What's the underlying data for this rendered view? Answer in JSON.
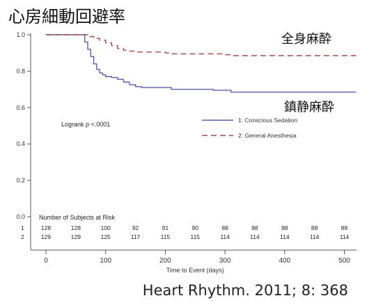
{
  "page": {
    "title": "心房細動回避率",
    "citation": "Heart Rhythm. 2011; 8: 368"
  },
  "chart_data": {
    "type": "line",
    "xlabel": "Time to Event (days)",
    "ylabel": "",
    "xlim": [
      -20,
      520
    ],
    "ylim": [
      0.0,
      1.0
    ],
    "x_ticks": [
      0,
      100,
      200,
      300,
      400,
      500
    ],
    "y_ticks": [
      0.0,
      0.2,
      0.4,
      0.6,
      0.8,
      1.0
    ],
    "y_tick_labels": [
      "0.0",
      "0.2",
      "0.4",
      "0.6",
      "0.8",
      "1.0"
    ],
    "grid": false,
    "legend_position": "center-right",
    "colors": {
      "conscious": "#5b5fa8",
      "general": "#a04a4a"
    },
    "series": [
      {
        "name": "1: Conscious Sedation",
        "annotation": "鎮静麻酔",
        "color": "#5b5fa8",
        "dash": "solid",
        "x": [
          0,
          60,
          65,
          70,
          75,
          80,
          85,
          90,
          95,
          100,
          110,
          120,
          130,
          140,
          150,
          160,
          200,
          210,
          250,
          280,
          300,
          310,
          400,
          450,
          500,
          520
        ],
        "y": [
          1.0,
          1.0,
          0.96,
          0.92,
          0.88,
          0.84,
          0.81,
          0.79,
          0.78,
          0.77,
          0.765,
          0.755,
          0.74,
          0.725,
          0.715,
          0.71,
          0.71,
          0.7,
          0.7,
          0.695,
          0.695,
          0.685,
          0.685,
          0.685,
          0.685,
          0.685
        ]
      },
      {
        "name": "2: General Anesthesia",
        "annotation": "全身麻酔",
        "color": "#a04a4a",
        "dash": "dashed",
        "x": [
          0,
          60,
          70,
          80,
          90,
          100,
          110,
          120,
          130,
          140,
          150,
          160,
          200,
          210,
          250,
          300,
          310,
          400,
          500,
          520
        ],
        "y": [
          1.0,
          1.0,
          0.99,
          0.98,
          0.97,
          0.955,
          0.94,
          0.925,
          0.915,
          0.91,
          0.905,
          0.905,
          0.9,
          0.895,
          0.895,
          0.89,
          0.885,
          0.885,
          0.885,
          0.885
        ]
      }
    ],
    "annotations": [
      "Logrank p <.0001"
    ],
    "risk_table": {
      "title": "Number of Subjects at Risk",
      "x": [
        0,
        50,
        100,
        150,
        200,
        250,
        300,
        350,
        400,
        450,
        500
      ],
      "rows": [
        {
          "label": "1",
          "values": [
            128,
            128,
            100,
            92,
            91,
            90,
            88,
            88,
            88,
            88,
            88
          ]
        },
        {
          "label": "2",
          "values": [
            129,
            129,
            125,
            117,
            115,
            115,
            114,
            114,
            114,
            114,
            114
          ]
        }
      ]
    }
  }
}
